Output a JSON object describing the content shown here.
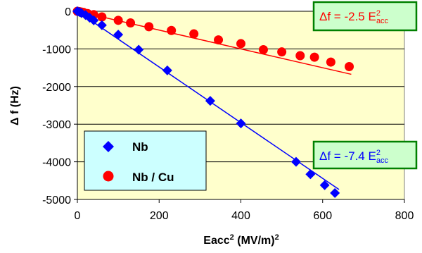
{
  "chart_data": {
    "type": "scatter",
    "title": "",
    "xlabel": {
      "main": "Eacc",
      "sup": "2",
      "rest": " (MV/m)",
      "sup2": "2"
    },
    "ylabel": "Δ f (Hz)",
    "xlim": [
      0,
      800
    ],
    "ylim": [
      -5000,
      0
    ],
    "xticks": [
      "0",
      "200",
      "400",
      "600",
      "800"
    ],
    "yticks": [
      "0",
      "-1000",
      "-2000",
      "-3000",
      "-4000",
      "-5000"
    ],
    "grid": "horizontal",
    "plot_background": "#ffffcc",
    "legend_placement": "bottom-left",
    "series": [
      {
        "name": "Nb",
        "marker": "diamond",
        "color": "#0000ff",
        "line_color": "#0000ff",
        "x": [
          0,
          5,
          10,
          20,
          30,
          40,
          60,
          100,
          150,
          220,
          325,
          400,
          535,
          570,
          605,
          630
        ],
        "y": [
          0,
          -20,
          -50,
          -100,
          -170,
          -240,
          -370,
          -620,
          -1020,
          -1570,
          -2380,
          -2980,
          -4000,
          -4330,
          -4620,
          -4830
        ],
        "fit": {
          "slope": -7.4,
          "x_range": [
            0,
            640
          ]
        }
      },
      {
        "name": "Nb / Cu",
        "marker": "circle",
        "color": "#ff0000",
        "line_color": "#ff0000",
        "x": [
          0,
          5,
          10,
          15,
          25,
          40,
          60,
          100,
          130,
          175,
          230,
          285,
          345,
          400,
          455,
          500,
          545,
          580,
          620,
          665
        ],
        "y": [
          0,
          -10,
          -20,
          -30,
          -60,
          -90,
          -150,
          -240,
          -310,
          -410,
          -510,
          -600,
          -760,
          -860,
          -1020,
          -1080,
          -1180,
          -1220,
          -1350,
          -1470
        ],
        "fit": {
          "slope": -2.5,
          "x_range": [
            0,
            670
          ]
        }
      }
    ],
    "annotations": [
      {
        "prefix": "Δf = -2.5 E",
        "sup": "2",
        "sub": "acc",
        "color": "#ff0000",
        "box_fill": "#ccffcc",
        "box_stroke": "#008000"
      },
      {
        "prefix": "Δf = -7.4 E",
        "sup": "2",
        "sub": "acc",
        "color": "#0000ff",
        "box_fill": "#ccffcc",
        "box_stroke": "#008000"
      }
    ]
  }
}
